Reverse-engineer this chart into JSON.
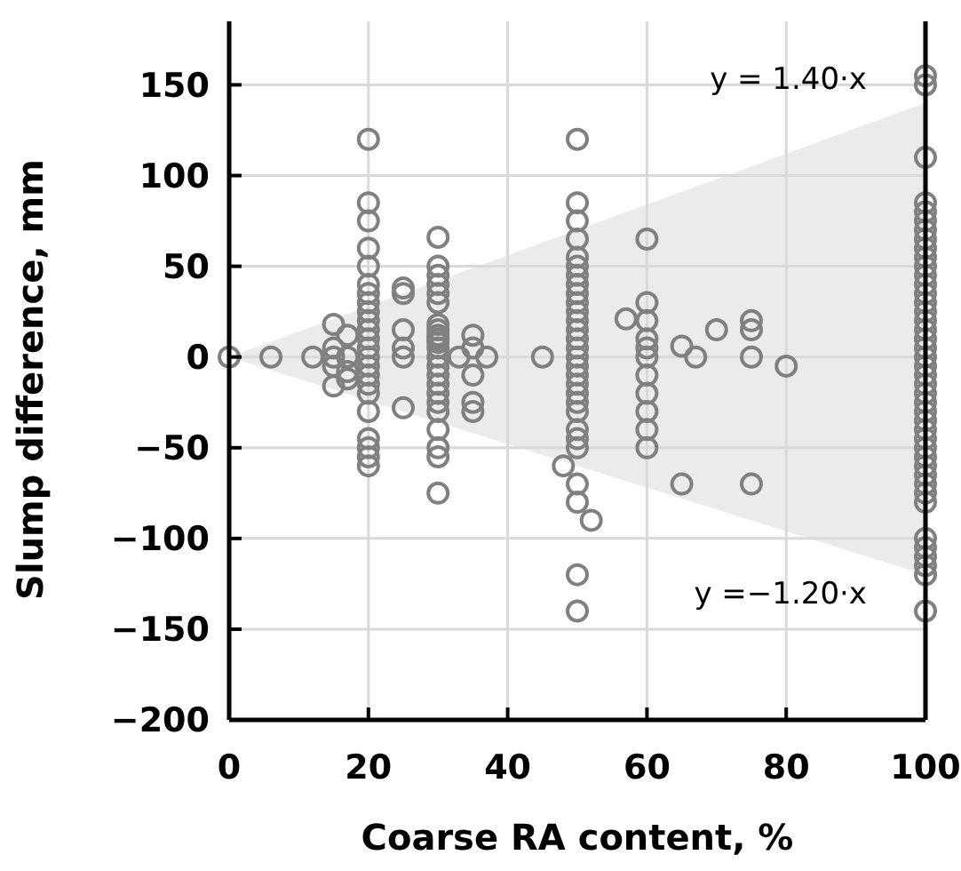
{
  "chart_data": {
    "type": "scatter",
    "xlabel": "Coarse RA content, %",
    "ylabel": "Slump difference, mm",
    "xlim": [
      0,
      100
    ],
    "ylim": [
      -200,
      185
    ],
    "xticks": [
      0,
      20,
      40,
      60,
      80,
      100
    ],
    "yticks": [
      150,
      100,
      50,
      0,
      {
        "value": -50,
        "label": "−50"
      },
      {
        "value": -100,
        "label": "−100"
      },
      {
        "value": -150,
        "label": "−150"
      },
      {
        "value": -200,
        "label": "−200"
      }
    ],
    "grid": true,
    "marker": "circle",
    "annotations": [
      {
        "text": "y = 1.40·x",
        "x": 100,
        "y": 140
      },
      {
        "text": "y =−1.20·x",
        "x": 100,
        "y": -120
      }
    ],
    "series": [
      {
        "type": "area",
        "color": "#ebebeb",
        "marker": "none",
        "x": [
          0,
          100,
          100
        ],
        "values": [
          0,
          140,
          -120
        ]
      },
      {
        "color": "#808080",
        "x": [
          0,
          6,
          12,
          15,
          15,
          15,
          15,
          15,
          17,
          17,
          17,
          17,
          20,
          20,
          20,
          20,
          20,
          20,
          20,
          20,
          20,
          20,
          20,
          20,
          20,
          20,
          20,
          20,
          20,
          20,
          20,
          20,
          20,
          20,
          20,
          25,
          25,
          25,
          25,
          25,
          25,
          30,
          30,
          30,
          30,
          30,
          30,
          30,
          30,
          30,
          30,
          30,
          30,
          30,
          30,
          30,
          30,
          30,
          30,
          30,
          30,
          30,
          30,
          30,
          33,
          35,
          35,
          35,
          35,
          35,
          37,
          45,
          50,
          50,
          50,
          50,
          50,
          50,
          50,
          50,
          50,
          50,
          50,
          50,
          50,
          50,
          50,
          50,
          50,
          50,
          50,
          50,
          50,
          50,
          50,
          50,
          50,
          48,
          50,
          50,
          52,
          50,
          50,
          57,
          60,
          60,
          60,
          60,
          60,
          60,
          60,
          60,
          60,
          60,
          60,
          65,
          67,
          70,
          75,
          75,
          75,
          80,
          65,
          75,
          100,
          100,
          100,
          100,
          100,
          100,
          100,
          100,
          100,
          100,
          100,
          100,
          100,
          100,
          100,
          100,
          100,
          100,
          100,
          100,
          100,
          100,
          100,
          100,
          100,
          100,
          100,
          100,
          100,
          100,
          100,
          100,
          100,
          100,
          100,
          100,
          100,
          100,
          100,
          100,
          100,
          100,
          100
        ],
        "values": [
          0,
          0,
          0,
          18,
          5,
          0,
          -5,
          -16,
          12,
          0,
          -8,
          -12,
          120,
          85,
          75,
          60,
          50,
          40,
          30,
          25,
          20,
          15,
          10,
          5,
          0,
          -5,
          -10,
          -15,
          -20,
          -30,
          -50,
          -55,
          -60,
          -45,
          35,
          38,
          35,
          15,
          5,
          0,
          -28,
          66,
          50,
          45,
          40,
          35,
          30,
          18,
          15,
          12,
          10,
          8,
          5,
          0,
          -5,
          -10,
          -15,
          -20,
          -25,
          -30,
          -40,
          -50,
          -55,
          -75,
          0,
          12,
          5,
          -10,
          -25,
          -30,
          0,
          0,
          120,
          85,
          75,
          65,
          55,
          50,
          45,
          40,
          35,
          30,
          25,
          20,
          15,
          10,
          5,
          0,
          -5,
          -10,
          -15,
          -20,
          -25,
          -30,
          -40,
          -45,
          -50,
          -60,
          -70,
          -80,
          -90,
          -120,
          -140,
          21,
          65,
          30,
          20,
          10,
          5,
          0,
          -10,
          -20,
          -30,
          -40,
          -50,
          6,
          0,
          15,
          20,
          15,
          0,
          -5,
          -70,
          -70,
          155,
          150,
          110,
          85,
          80,
          75,
          70,
          65,
          60,
          55,
          50,
          45,
          40,
          35,
          30,
          25,
          20,
          15,
          10,
          5,
          0,
          -5,
          -10,
          -15,
          -20,
          -25,
          -30,
          -35,
          -40,
          -45,
          -50,
          -55,
          -60,
          -65,
          -70,
          -75,
          -80,
          -100,
          -105,
          -110,
          -115,
          -120,
          -140
        ]
      }
    ]
  }
}
